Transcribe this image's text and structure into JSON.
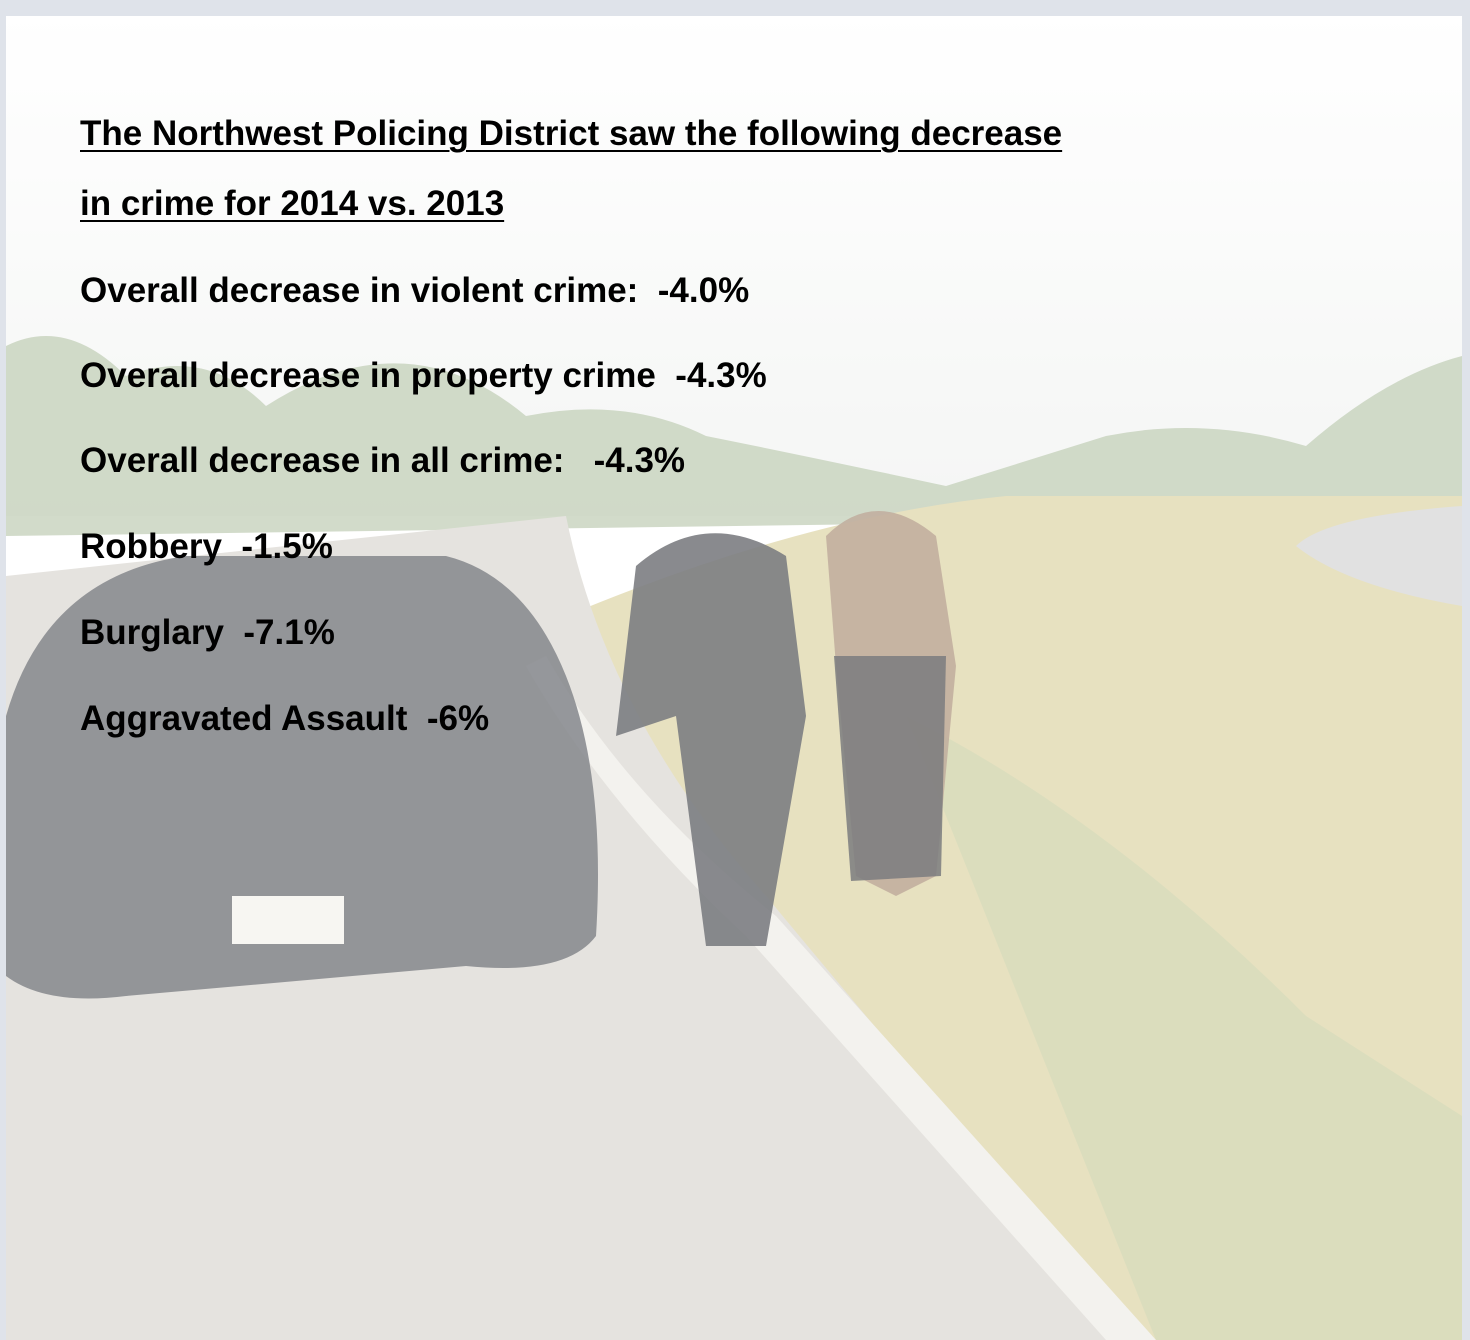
{
  "slide": {
    "title_lines": [
      "The Northwest Policing District saw the following decrease",
      "in crime for 2014 vs. 2013"
    ],
    "items": [
      "Overall decrease in violent crime:  -4.0%",
      "Overall decrease in property crime  -4.3%",
      "Overall decrease in all crime:   -4.3%",
      "Robbery  -1.5%",
      "Burglary  -7.1%",
      "Aggravated Assault  -6%"
    ]
  }
}
